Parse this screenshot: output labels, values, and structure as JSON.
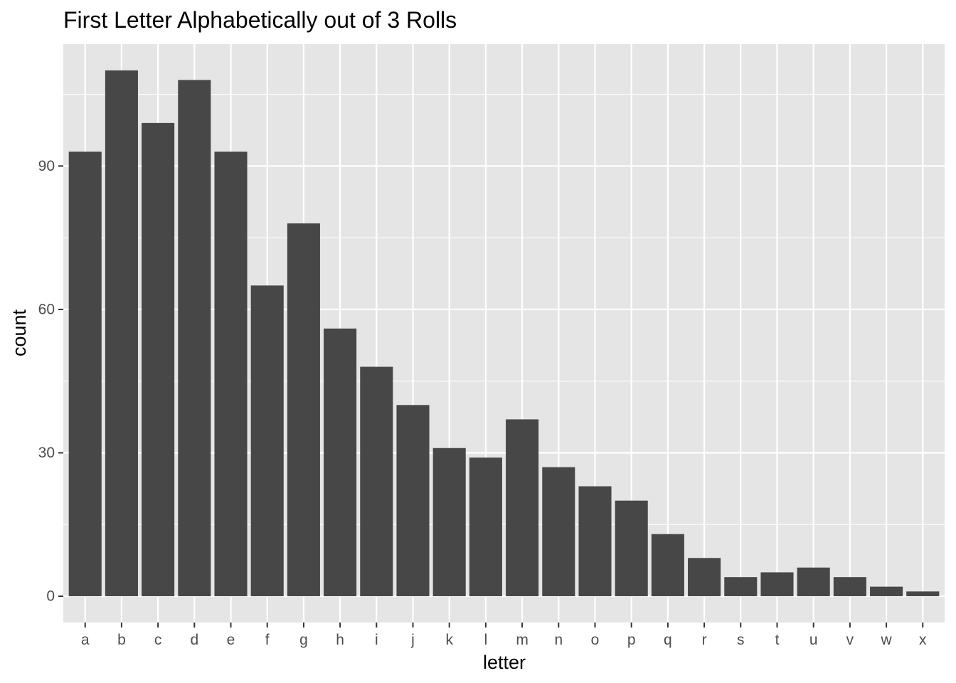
{
  "chart_data": {
    "type": "bar",
    "title": "First Letter Alphabetically out of 3 Rolls",
    "xlabel": "letter",
    "ylabel": "count",
    "categories": [
      "a",
      "b",
      "c",
      "d",
      "e",
      "f",
      "g",
      "h",
      "i",
      "j",
      "k",
      "l",
      "m",
      "n",
      "o",
      "p",
      "q",
      "r",
      "s",
      "t",
      "u",
      "v",
      "w",
      "x"
    ],
    "values": [
      93,
      110,
      99,
      108,
      93,
      65,
      78,
      56,
      48,
      40,
      31,
      29,
      37,
      27,
      23,
      20,
      13,
      8,
      4,
      5,
      6,
      4,
      2,
      1
    ],
    "ylim": [
      -5.5,
      115.5
    ],
    "yticks": [
      0,
      30,
      60,
      90
    ],
    "ytick_labels": [
      "0",
      "30",
      "60",
      "90"
    ],
    "grid": true,
    "legend": "none",
    "colors": {
      "panel_background": "#e5e5e5",
      "grid": "#ffffff",
      "bar": "#474747",
      "tick_text": "#4d4d4d",
      "tick_mark": "#333333",
      "text": "#000000"
    }
  }
}
